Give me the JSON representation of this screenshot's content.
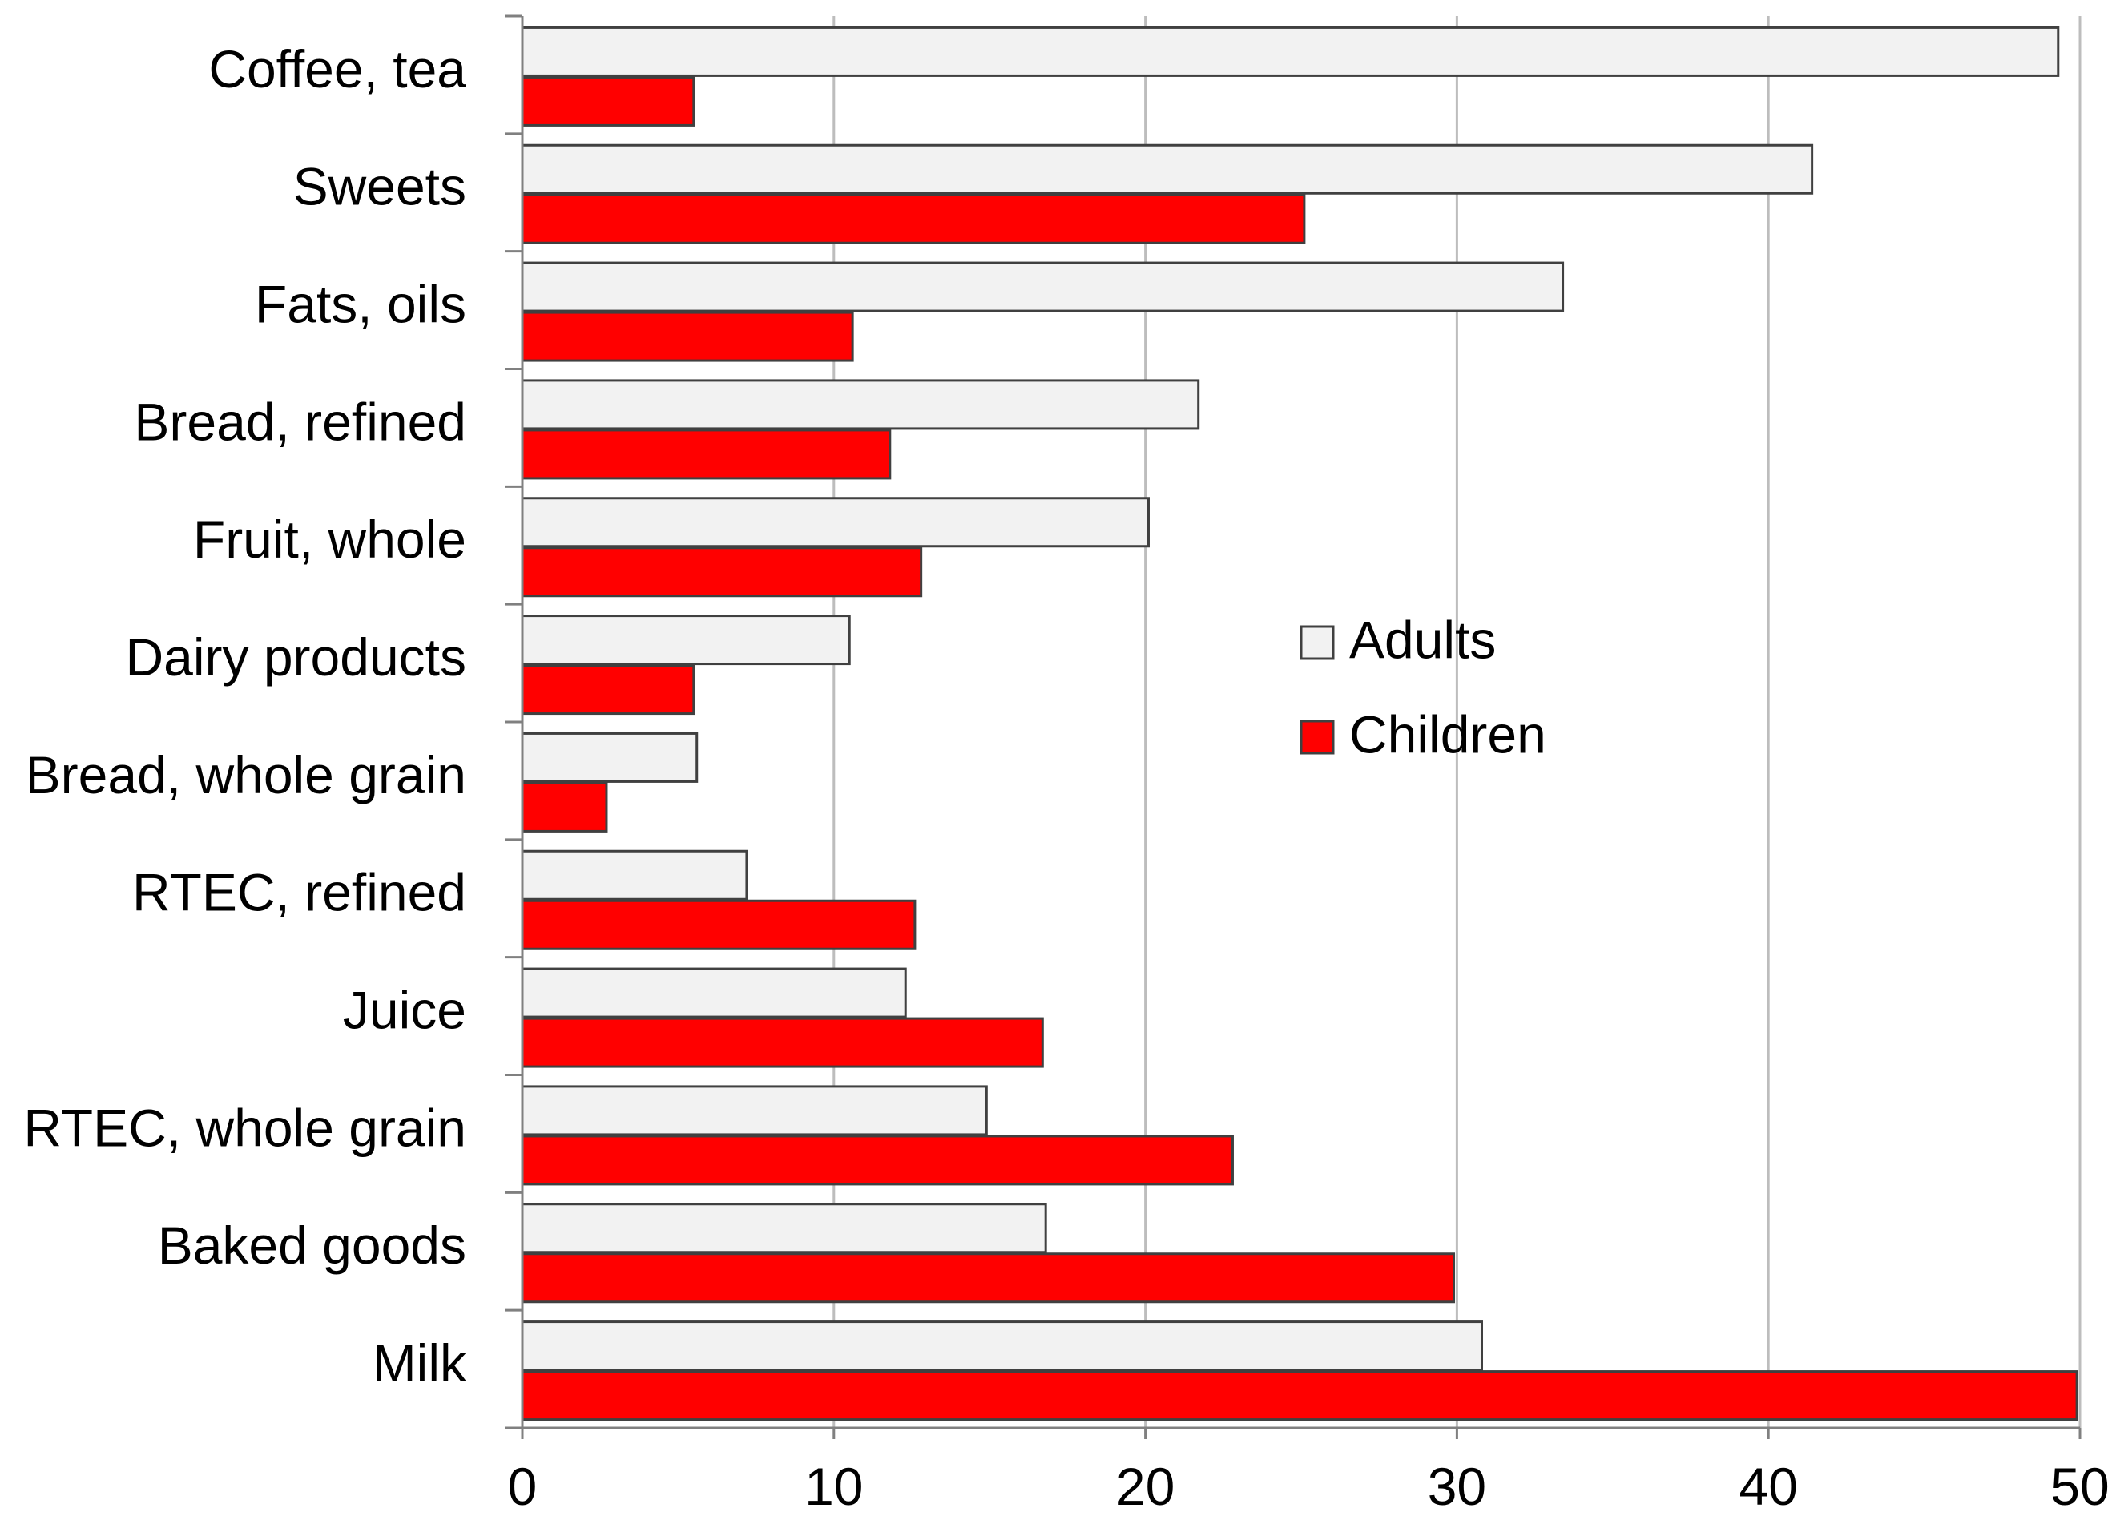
{
  "chart_data": {
    "type": "bar",
    "orientation": "horizontal",
    "title": "",
    "xlabel": "",
    "ylabel": "",
    "xlim": [
      0,
      50
    ],
    "x_ticks": [
      0,
      10,
      20,
      30,
      40,
      50
    ],
    "grid": true,
    "legend_position": "center-right",
    "categories": [
      "Coffee, tea",
      "Sweets",
      "Fats, oils",
      "Bread, refined",
      "Fruit, whole",
      "Dairy products",
      "Bread, whole grain",
      "RTEC, refined",
      "Juice",
      "RTEC, whole grain",
      "Baked goods",
      "Milk"
    ],
    "series": [
      {
        "name": "Adults",
        "color": "#f2f2f2",
        "values": [
          49.3,
          41.4,
          33.4,
          21.7,
          20.1,
          10.5,
          5.6,
          7.2,
          12.3,
          14.9,
          16.8,
          30.8
        ]
      },
      {
        "name": "Children",
        "color": "#ff0000",
        "values": [
          5.5,
          25.1,
          10.6,
          11.8,
          12.8,
          5.5,
          2.7,
          12.6,
          16.7,
          22.8,
          29.9,
          49.9
        ]
      }
    ]
  }
}
